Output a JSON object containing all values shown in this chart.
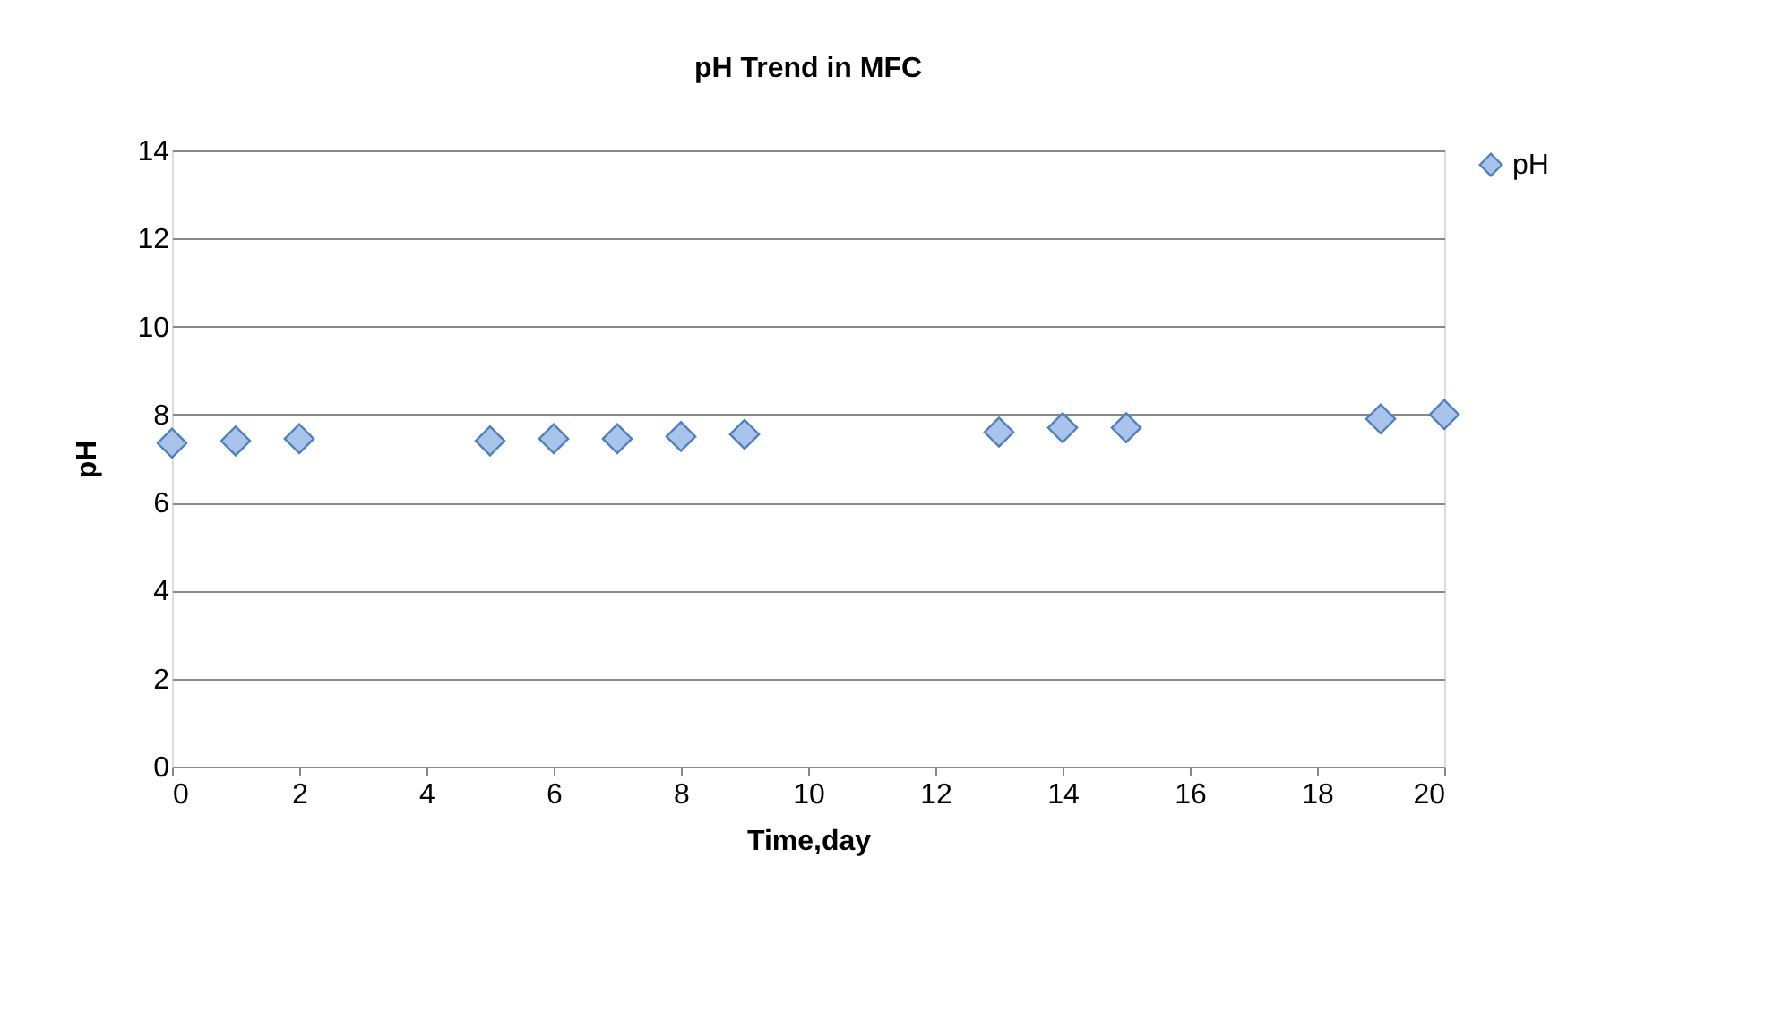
{
  "chart_data": {
    "type": "scatter",
    "title": "pH Trend in MFC",
    "xlabel": "Time,day",
    "ylabel": "pH",
    "x": [
      0,
      1,
      2,
      5,
      6,
      7,
      8,
      9,
      13,
      14,
      15,
      19,
      20
    ],
    "series": [
      {
        "name": "pH",
        "color": "#a9c4eb",
        "values": [
          7.35,
          7.4,
          7.45,
          7.4,
          7.45,
          7.45,
          7.5,
          7.55,
          7.6,
          7.7,
          7.7,
          7.9,
          8.0
        ]
      }
    ],
    "xlim": [
      0,
      20
    ],
    "xticks": [
      0,
      2,
      4,
      6,
      8,
      10,
      12,
      14,
      16,
      18,
      20
    ],
    "ylim": [
      0,
      14
    ],
    "yticks": [
      0,
      2,
      4,
      6,
      8,
      10,
      12,
      14
    ],
    "grid": "y",
    "legend": "right",
    "marker": "diamond"
  }
}
